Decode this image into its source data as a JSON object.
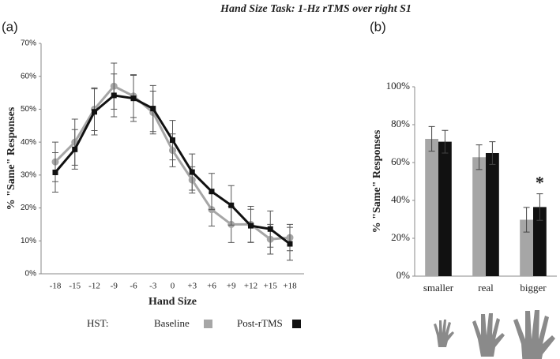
{
  "title": "Hand Size Task: 1-Hz rTMS over right S1",
  "legend": {
    "title": "HST:"
  },
  "chart_data": [
    {
      "type": "line",
      "panel_label": "(a)",
      "x_label": "Hand Size",
      "y_label": "% \"Same\" Responses",
      "categories": [
        "-18",
        "-15",
        "-12",
        "-9",
        "-6",
        "-3",
        "0",
        "+3",
        "+6",
        "+9",
        "+12",
        "+15",
        "+18"
      ],
      "ylim": [
        0,
        70
      ],
      "yticks": [
        {
          "value": 0,
          "label": "0%"
        },
        {
          "value": 10,
          "label": "10%"
        },
        {
          "value": 20,
          "label": "20%"
        },
        {
          "value": 30,
          "label": "30%"
        },
        {
          "value": 40,
          "label": "40%"
        },
        {
          "value": 50,
          "label": "50%"
        },
        {
          "value": 60,
          "label": "60%"
        },
        {
          "value": 70,
          "label": "70%"
        }
      ],
      "series": [
        {
          "name": "Baseline",
          "color": "#a6a6a6",
          "marker": "circle",
          "values": [
            34,
            40,
            50,
            57,
            54,
            49,
            37.5,
            28.5,
            19.5,
            15,
            15,
            10.5,
            11
          ],
          "errors": [
            6,
            7,
            6.5,
            7,
            6.5,
            6.5,
            5,
            4,
            5,
            5.5,
            5.5,
            4.5,
            4
          ]
        },
        {
          "name": "Post-rTMS",
          "color": "#111111",
          "marker": "square",
          "values": [
            30.8,
            37.8,
            49.2,
            54.2,
            53.3,
            50.2,
            40.6,
            30.9,
            25,
            20.8,
            14.6,
            13.6,
            9.1
          ],
          "errors": [
            6,
            6,
            7,
            6.5,
            7,
            7,
            6,
            5.5,
            5.5,
            6,
            5,
            5.5,
            5
          ]
        }
      ]
    },
    {
      "type": "bar",
      "panel_label": "(b)",
      "y_label": "% \"Same\" Responses",
      "categories": [
        "smaller",
        "real",
        "bigger"
      ],
      "ylim": [
        0,
        100
      ],
      "yticks": [
        {
          "value": 0,
          "label": "0%"
        },
        {
          "value": 20,
          "label": "20%"
        },
        {
          "value": 40,
          "label": "40%"
        },
        {
          "value": 60,
          "label": "60%"
        },
        {
          "value": 80,
          "label": "80%"
        },
        {
          "value": 100,
          "label": "100%"
        }
      ],
      "series": [
        {
          "color": "#a6a6a6",
          "values": [
            72.5,
            62.8,
            29.8
          ],
          "errors": [
            6.5,
            6.5,
            6.5
          ]
        },
        {
          "color": "#111111",
          "values": [
            71,
            65,
            36.5
          ],
          "errors": [
            6,
            6,
            7
          ]
        }
      ],
      "annotation": "*"
    }
  ]
}
